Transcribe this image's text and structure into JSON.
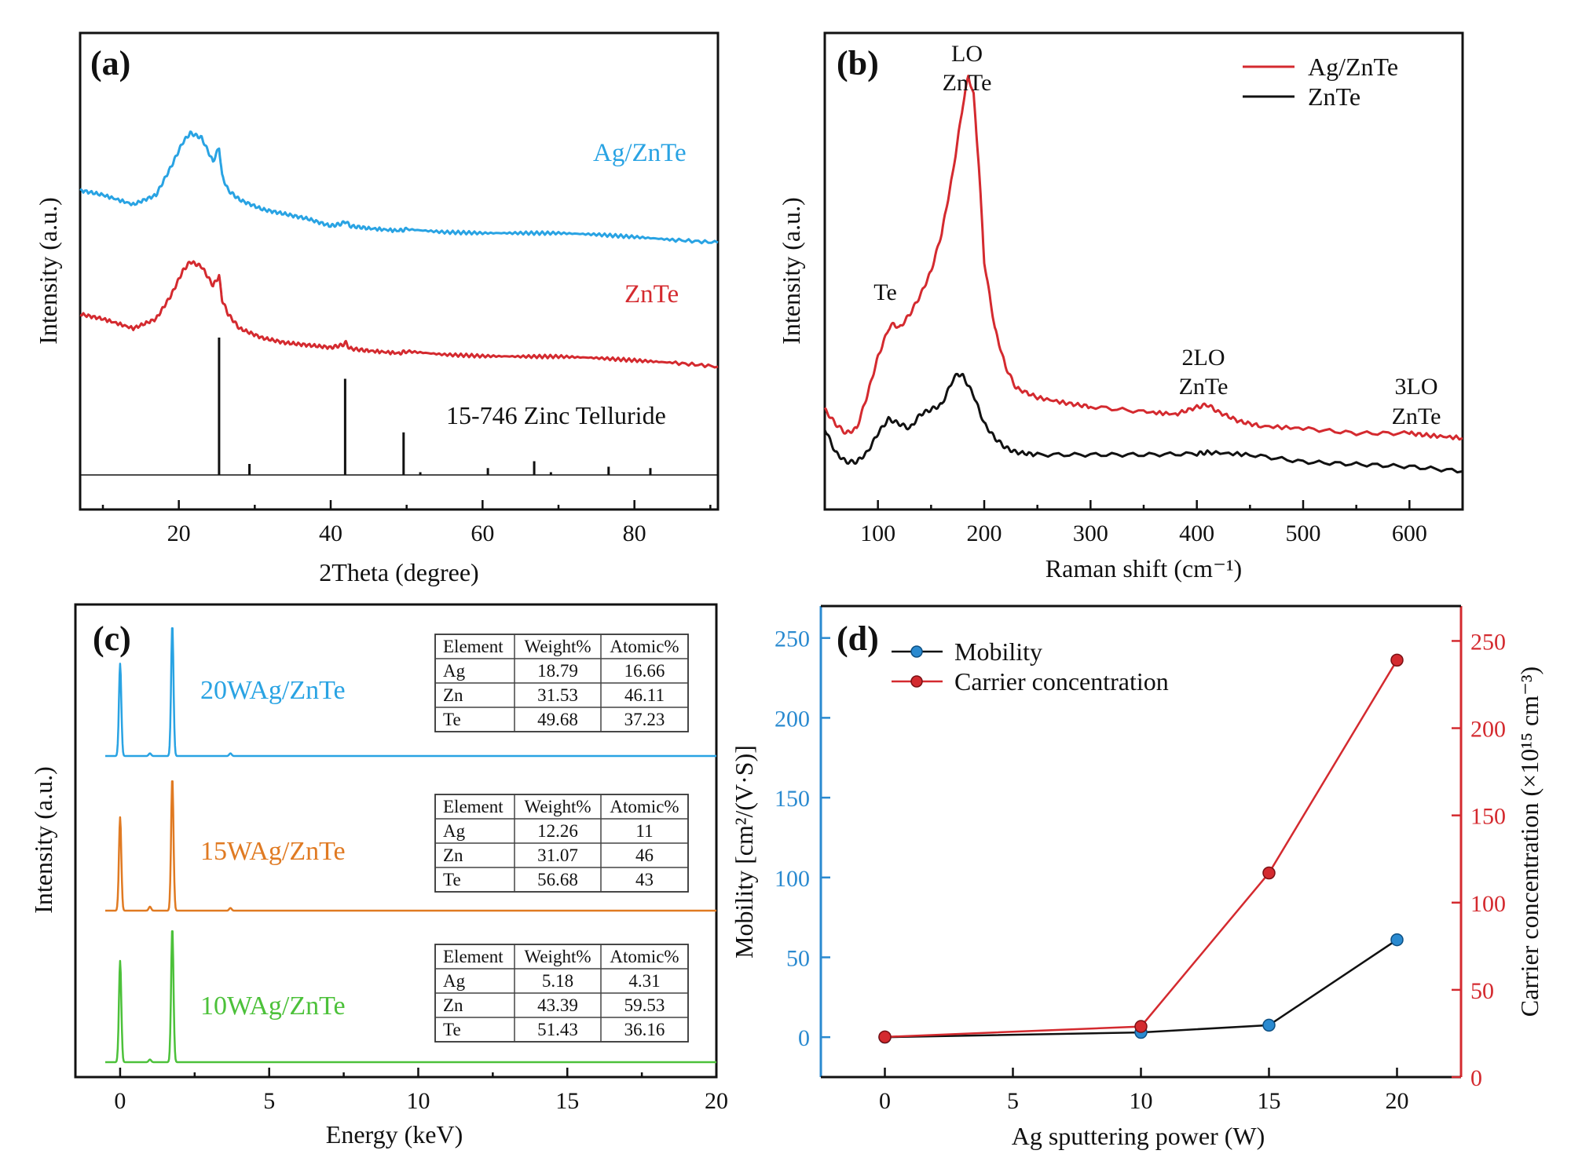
{
  "colors": {
    "blue": "#29a3e3",
    "red": "#d42a2f",
    "orange": "#e07a22",
    "green": "#4cc13a",
    "black": "#111111",
    "mobility_axis": "#2a8ad0",
    "carrier_axis": "#d42a2f"
  },
  "chart_data": [
    {
      "panel": "(a)",
      "type": "line",
      "xlabel": "2Theta (degree)",
      "ylabel": "Intensity (a.u.)",
      "xlim": [
        7,
        91
      ],
      "xticks": [
        "20",
        "40",
        "60",
        "80"
      ],
      "series": [
        {
          "name": "Ag/ZnTe",
          "color": "#29a3e3",
          "x": [
            7,
            10,
            14,
            17,
            19,
            20.5,
            21.5,
            23,
            24.5,
            25.3,
            25.7,
            26.5,
            28,
            31,
            34,
            37,
            40,
            41.5,
            42,
            42.5,
            45,
            49,
            50,
            55,
            60,
            65,
            70,
            75,
            80,
            85,
            91
          ],
          "y": [
            0.67,
            0.66,
            0.64,
            0.66,
            0.72,
            0.77,
            0.79,
            0.78,
            0.73,
            0.76,
            0.7,
            0.67,
            0.65,
            0.63,
            0.62,
            0.61,
            0.595,
            0.6,
            0.605,
            0.595,
            0.59,
            0.585,
            0.588,
            0.582,
            0.58,
            0.58,
            0.58,
            0.577,
            0.572,
            0.566,
            0.56
          ]
        },
        {
          "name": "ZnTe",
          "color": "#d42a2f",
          "x": [
            7,
            10,
            14,
            17,
            19,
            20.5,
            21.5,
            23,
            24.5,
            25.3,
            25.7,
            26.5,
            28,
            31,
            34,
            37,
            40,
            41.5,
            42,
            42.5,
            45,
            49,
            50,
            55,
            60,
            65,
            70,
            75,
            80,
            85,
            91
          ],
          "y": [
            0.41,
            0.4,
            0.38,
            0.4,
            0.45,
            0.5,
            0.52,
            0.51,
            0.47,
            0.49,
            0.44,
            0.41,
            0.38,
            0.36,
            0.35,
            0.345,
            0.34,
            0.345,
            0.35,
            0.338,
            0.333,
            0.328,
            0.332,
            0.325,
            0.322,
            0.321,
            0.321,
            0.318,
            0.313,
            0.308,
            0.3
          ]
        },
        {
          "name": "15-746 Zinc Telluride",
          "color": "#111111",
          "kind": "reference",
          "x": [
            25.3,
            29.3,
            41.9,
            49.6,
            51.8,
            60.7,
            66.8,
            69.0,
            76.6,
            82.1
          ],
          "y": [
            100,
            8,
            70,
            31,
            2,
            5,
            10,
            2,
            6,
            5
          ]
        }
      ],
      "annotations": [
        "Ag/ZnTe",
        "ZnTe",
        "15-746 Zinc Telluride"
      ]
    },
    {
      "panel": "(b)",
      "type": "line",
      "xlabel": "Raman shift (cm⁻¹)",
      "ylabel": "Intensity (a.u.)",
      "xlim": [
        50,
        650
      ],
      "xticks": [
        "100",
        "200",
        "300",
        "400",
        "500",
        "600"
      ],
      "legend": {
        "position": "top-right",
        "entries": [
          "Ag/ZnTe",
          "ZnTe"
        ]
      },
      "series": [
        {
          "name": "Ag/ZnTe",
          "color": "#d42a2f",
          "x": [
            50,
            60,
            70,
            80,
            90,
            100,
            110,
            115,
            120,
            130,
            140,
            150,
            160,
            170,
            180,
            185,
            190,
            195,
            200,
            210,
            220,
            230,
            250,
            280,
            300,
            350,
            380,
            400,
            410,
            420,
            440,
            460,
            500,
            550,
            600,
            620,
            650
          ],
          "y": [
            0.21,
            0.18,
            0.16,
            0.17,
            0.24,
            0.32,
            0.38,
            0.39,
            0.38,
            0.41,
            0.45,
            0.5,
            0.58,
            0.7,
            0.85,
            0.91,
            0.87,
            0.72,
            0.52,
            0.38,
            0.3,
            0.255,
            0.235,
            0.222,
            0.216,
            0.205,
            0.2,
            0.215,
            0.22,
            0.205,
            0.185,
            0.175,
            0.17,
            0.16,
            0.16,
            0.155,
            0.15
          ]
        },
        {
          "name": "ZnTe",
          "color": "#111111",
          "x": [
            50,
            60,
            70,
            80,
            90,
            100,
            110,
            120,
            130,
            140,
            150,
            160,
            170,
            175,
            180,
            190,
            200,
            210,
            220,
            230,
            250,
            300,
            350,
            400,
            410,
            450,
            500,
            550,
            600,
            650
          ],
          "y": [
            0.17,
            0.12,
            0.1,
            0.1,
            0.12,
            0.16,
            0.19,
            0.18,
            0.17,
            0.2,
            0.21,
            0.22,
            0.27,
            0.285,
            0.28,
            0.24,
            0.18,
            0.15,
            0.13,
            0.12,
            0.115,
            0.115,
            0.115,
            0.117,
            0.12,
            0.115,
            0.1,
            0.095,
            0.09,
            0.08
          ]
        }
      ],
      "annotations": [
        {
          "label": "Te",
          "x": 115
        },
        {
          "label": "LO",
          "sub": "ZnTe",
          "x": 185
        },
        {
          "label": "2LO",
          "sub": "ZnTe",
          "x": 405
        },
        {
          "label": "3LO",
          "sub": "ZnTe",
          "x": 600
        }
      ]
    },
    {
      "panel": "(c)",
      "type": "line",
      "xlabel": "Energy (keV)",
      "ylabel": "Intensity (a.u.)",
      "xlim": [
        -1.5,
        20
      ],
      "xticks": [
        "0",
        "5",
        "10",
        "15",
        "20"
      ],
      "series": [
        {
          "name": "20WAg/ZnTe",
          "color": "#29a3e3",
          "peaks_keV": [
            0.0,
            1.0,
            1.75,
            3.7
          ],
          "peak_rel": [
            0.7,
            0.02,
            1.0,
            0.02
          ]
        },
        {
          "name": "15WAg/ZnTe",
          "color": "#e07a22",
          "peaks_keV": [
            0.0,
            1.0,
            1.75,
            3.7
          ],
          "peak_rel": [
            0.7,
            0.03,
            1.0,
            0.02
          ]
        },
        {
          "name": "10WAg/ZnTe",
          "color": "#4cc13a",
          "peaks_keV": [
            0.0,
            1.0,
            1.75
          ],
          "peak_rel": [
            0.75,
            0.02,
            1.0
          ]
        }
      ],
      "tables": [
        {
          "sample": "20WAg/ZnTe",
          "headers": [
            "Element",
            "Weight%",
            "Atomic%"
          ],
          "rows": [
            [
              "Ag",
              "18.79",
              "16.66"
            ],
            [
              "Zn",
              "31.53",
              "46.11"
            ],
            [
              "Te",
              "49.68",
              "37.23"
            ]
          ]
        },
        {
          "sample": "15WAg/ZnTe",
          "headers": [
            "Element",
            "Weight%",
            "Atomic%"
          ],
          "rows": [
            [
              "Ag",
              "12.26",
              "11"
            ],
            [
              "Zn",
              "31.07",
              "46"
            ],
            [
              "Te",
              "56.68",
              "43"
            ]
          ]
        },
        {
          "sample": "10WAg/ZnTe",
          "headers": [
            "Element",
            "Weight%",
            "Atomic%"
          ],
          "rows": [
            [
              "Ag",
              "5.18",
              "4.31"
            ],
            [
              "Zn",
              "43.39",
              "59.53"
            ],
            [
              "Te",
              "51.43",
              "36.16"
            ]
          ]
        }
      ]
    },
    {
      "panel": "(d)",
      "type": "line",
      "xlabel": "Ag sputtering power (W)",
      "ylabel_left": "Mobility [cm²/(V·S)]",
      "ylabel_right": "Carrier concentration (×10¹⁵ cm⁻³)",
      "xlim": [
        -2.5,
        22.5
      ],
      "ylim_left": [
        -25,
        270
      ],
      "ylim_right": [
        0,
        270
      ],
      "xticks": [
        "0",
        "5",
        "10",
        "15",
        "20"
      ],
      "yticks_left": [
        "0",
        "50",
        "100",
        "150",
        "200",
        "250"
      ],
      "yticks_right": [
        "0",
        "50",
        "100",
        "150",
        "200",
        "250"
      ],
      "legend": {
        "position": "top-left",
        "entries": [
          "Mobility",
          "Carrier concentration"
        ]
      },
      "series": [
        {
          "name": "Mobility",
          "axis": "left",
          "color": "#2a8ad0",
          "line_color": "#111111",
          "x": [
            0,
            10,
            15,
            20
          ],
          "y": [
            0,
            3,
            7.5,
            61
          ]
        },
        {
          "name": "Carrier concentration",
          "axis": "right",
          "color": "#d42a2f",
          "line_color": "#d42a2f",
          "x": [
            0,
            10,
            15,
            20
          ],
          "y": [
            23,
            29,
            117,
            239
          ]
        }
      ]
    }
  ]
}
